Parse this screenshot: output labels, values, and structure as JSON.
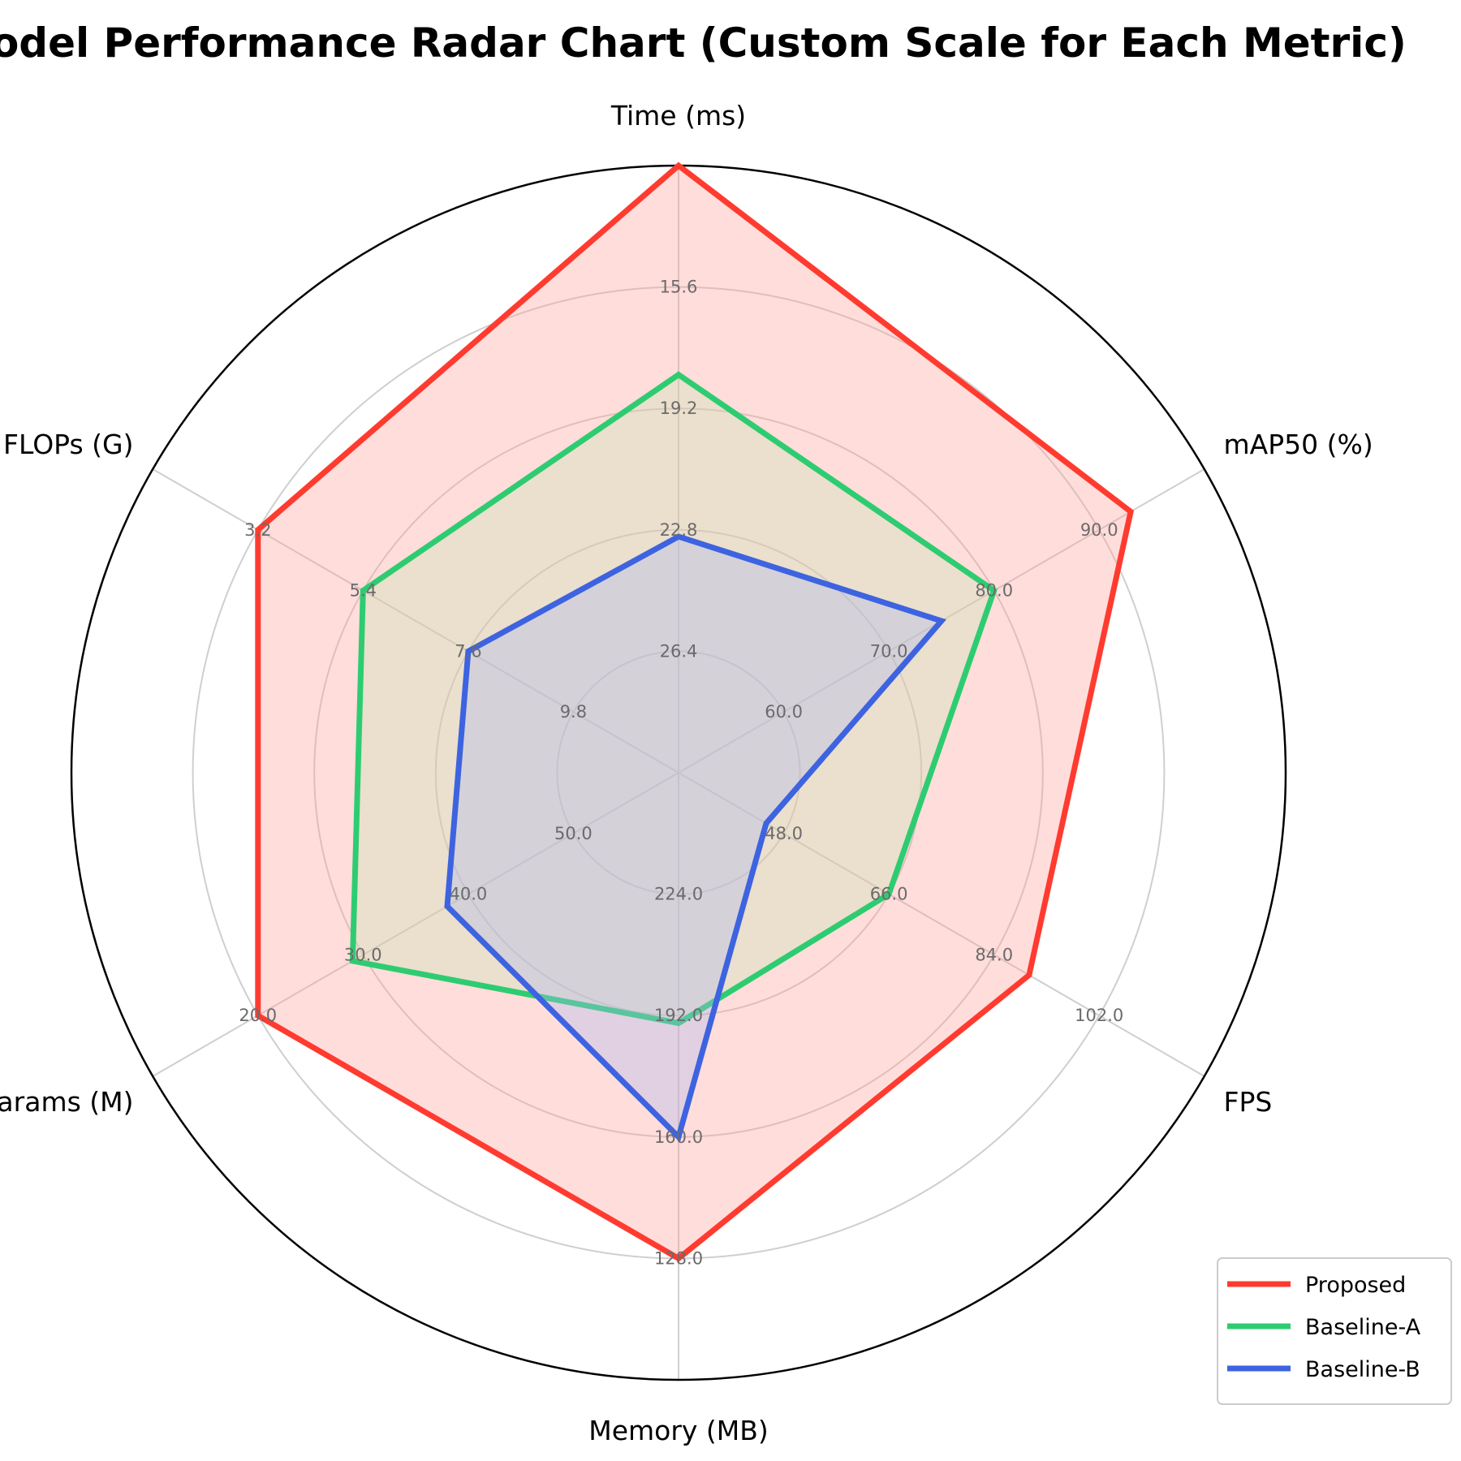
{
  "chart_data": {
    "type": "radar",
    "title": "Model Performance Radar Chart (Custom Scale for Each Metric)",
    "axes": [
      {
        "name": "Time (ms)",
        "ticks": [
          "15.6",
          "19.2",
          "22.8",
          "26.4"
        ],
        "tick_levels": [
          0.8,
          0.6,
          0.4,
          0.2
        ]
      },
      {
        "name": "mAP50 (%)",
        "ticks": [
          "90.0",
          "80.0",
          "70.0",
          "60.0"
        ],
        "tick_levels": [
          0.8,
          0.6,
          0.4,
          0.2
        ]
      },
      {
        "name": "FPS",
        "ticks": [
          "102.0",
          "84.0",
          "66.0",
          "48.0"
        ],
        "tick_levels": [
          0.8,
          0.6,
          0.4,
          0.2
        ]
      },
      {
        "name": "Memory (MB)",
        "ticks": [
          "128.0",
          "160.0",
          "192.0",
          "224.0"
        ],
        "tick_levels": [
          0.8,
          0.6,
          0.4,
          0.2
        ]
      },
      {
        "name": "Params (M)",
        "ticks": [
          "20.0",
          "30.0",
          "40.0",
          "50.0"
        ],
        "tick_levels": [
          0.8,
          0.6,
          0.4,
          0.2
        ]
      },
      {
        "name": "FLOPs (G)",
        "ticks": [
          "3.2",
          "5.4",
          "7.6",
          "9.8"
        ],
        "tick_levels": [
          0.8,
          0.6,
          0.4,
          0.2
        ]
      }
    ],
    "series": [
      {
        "name": "Proposed",
        "color": "#ff3b30",
        "fill": "#ff9f97",
        "values": [
          12.0,
          93.0,
          90.0,
          128.0,
          20.0,
          3.2
        ]
      },
      {
        "name": "Baseline-A",
        "color": "#2ecc71",
        "fill": "#c6e3b5",
        "values": [
          18.2,
          80.0,
          66.0,
          190.0,
          29.0,
          5.4
        ]
      },
      {
        "name": "Baseline-B",
        "color": "#3d63e0",
        "fill": "#a9b8f0",
        "values": [
          23.0,
          75.0,
          45.0,
          160.0,
          38.0,
          7.6
        ]
      }
    ],
    "grid": true,
    "legend": "bottom-right"
  }
}
